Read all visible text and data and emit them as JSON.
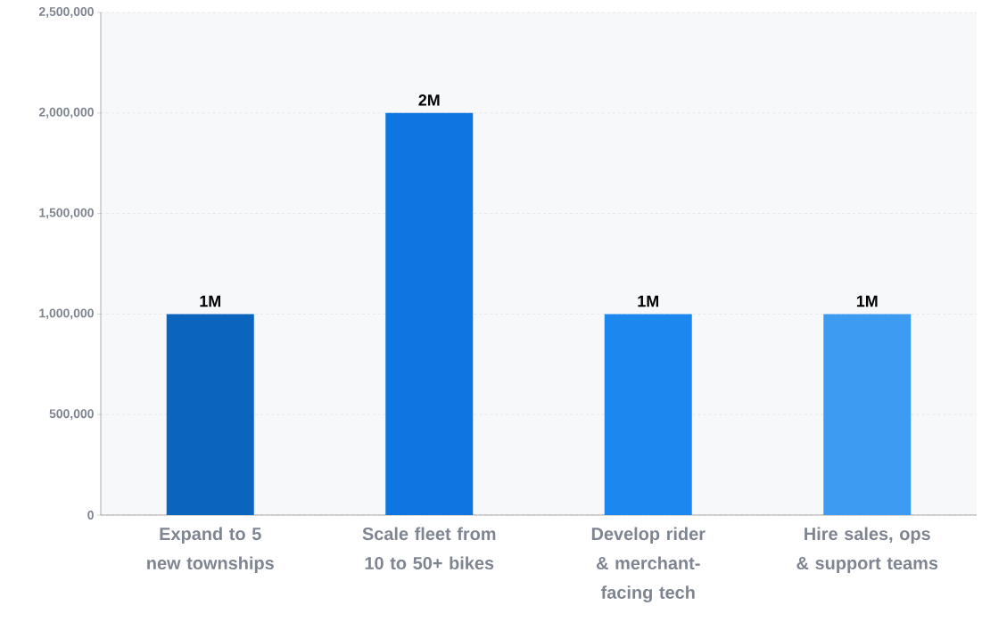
{
  "chart_data": {
    "type": "bar",
    "categories": [
      "Expand to 5 new townships",
      "Scale fleet from 10 to 50+ bikes",
      "Develop rider & merchant-facing tech",
      "Hire sales, ops & support teams"
    ],
    "values": [
      1000000,
      2000000,
      1000000,
      1000000
    ],
    "colors": [
      "#0b64bd",
      "#0f75e0",
      "#1c88ef",
      "#3d9cf2"
    ],
    "value_labels": [
      "1M",
      "2M",
      "1M",
      "1M"
    ],
    "ylim": [
      0,
      2500000
    ],
    "yticks": [
      {
        "value": 0,
        "label": "0"
      },
      {
        "value": 500000,
        "label": "500,000"
      },
      {
        "value": 1000000,
        "label": "1,000,000"
      },
      {
        "value": 1500000,
        "label": "1,500,000"
      },
      {
        "value": 2000000,
        "label": "2,000,000"
      },
      {
        "value": 2500000,
        "label": "2,500,000"
      }
    ],
    "grid": "y"
  }
}
